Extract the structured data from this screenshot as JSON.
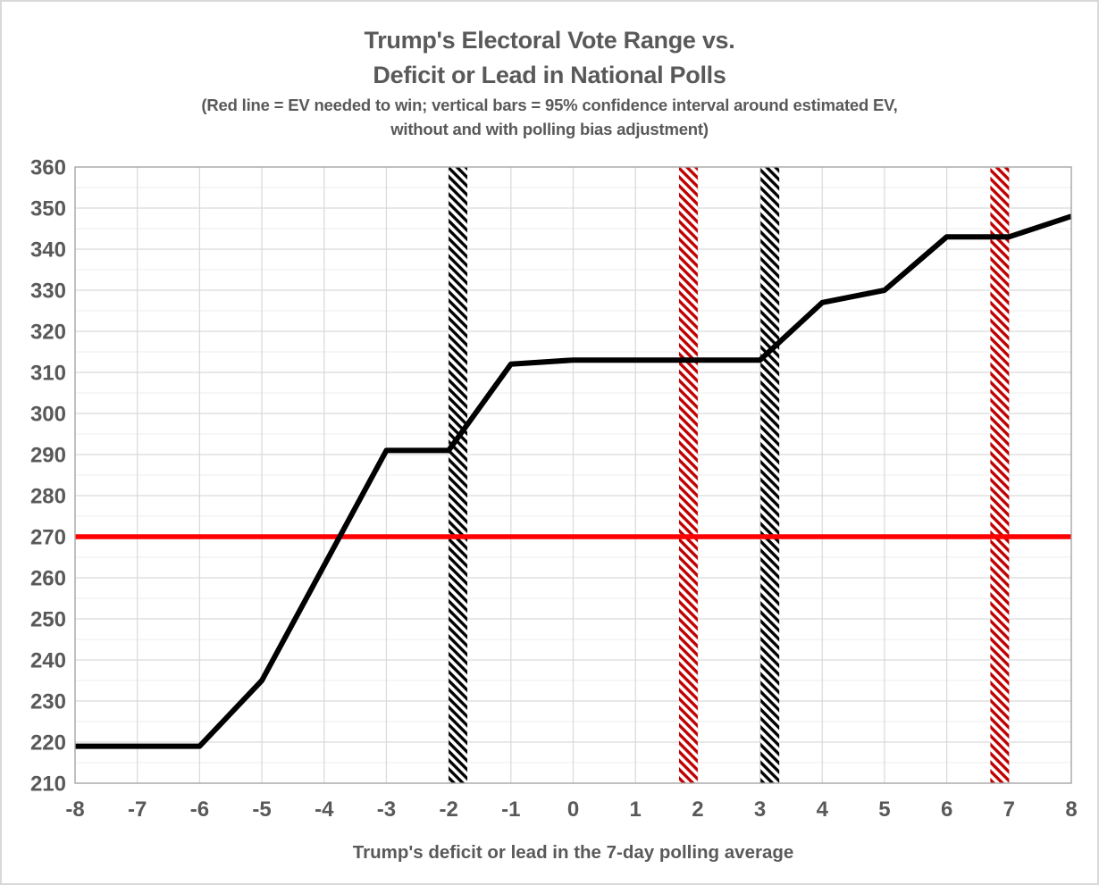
{
  "chart_data": {
    "type": "line",
    "title_lines": [
      "Trump's Electoral Vote Range vs.",
      "Deficit or Lead in National Polls"
    ],
    "subtitle_lines": [
      "(Red line = EV needed to win; vertical bars = 95% confidence interval around estimated EV,",
      "without and with polling bias adjustment)"
    ],
    "xlabel": "Trump's deficit or lead in the 7-day polling average",
    "ylabel": "",
    "xlim": [
      -8,
      8
    ],
    "ylim": [
      210,
      360
    ],
    "x_ticks": [
      -8,
      -7,
      -6,
      -5,
      -4,
      -3,
      -2,
      -1,
      0,
      1,
      2,
      3,
      4,
      5,
      6,
      7,
      8
    ],
    "y_ticks": [
      210,
      220,
      230,
      240,
      250,
      260,
      270,
      280,
      290,
      300,
      310,
      320,
      330,
      340,
      350,
      360
    ],
    "y_minor_step": 5,
    "grid": true,
    "series": [
      {
        "name": "Estimated electoral votes",
        "color": "#000000",
        "stroke_width": 6,
        "x": [
          -8,
          -7,
          -6,
          -5,
          -4,
          -3,
          -2,
          -1,
          0,
          1,
          2,
          3,
          4,
          5,
          6,
          7,
          8
        ],
        "y": [
          219,
          219,
          219,
          235,
          263,
          291,
          291,
          312,
          313,
          313,
          313,
          313,
          327,
          330,
          343,
          343,
          348
        ]
      }
    ],
    "reference_line": {
      "name": "EV needed to win",
      "y": 270,
      "color": "#FF0000",
      "stroke_width": 5.5
    },
    "ci_bars": [
      {
        "name": "ci-lower-without-bias-adjustment",
        "x_center": -1.85,
        "width_units": 0.3,
        "color": "#000000",
        "group": "without polling bias adjustment"
      },
      {
        "name": "ci-lower-with-bias-adjustment",
        "x_center": 1.85,
        "width_units": 0.3,
        "color": "#C00000",
        "group": "with polling bias adjustment"
      },
      {
        "name": "ci-upper-without-bias-adjustment",
        "x_center": 3.16,
        "width_units": 0.3,
        "color": "#000000",
        "group": "without polling bias adjustment"
      },
      {
        "name": "ci-upper-with-bias-adjustment",
        "x_center": 6.85,
        "width_units": 0.3,
        "color": "#C00000",
        "group": "with polling bias adjustment"
      }
    ],
    "colors": {
      "title_text": "#595959",
      "axis_text": "#595959",
      "grid_major": "#d9d9d9",
      "grid_minor": "#f1f1f1",
      "plot_border": "#a6a6a6",
      "background": "#ffffff"
    },
    "legend_position": "none"
  }
}
